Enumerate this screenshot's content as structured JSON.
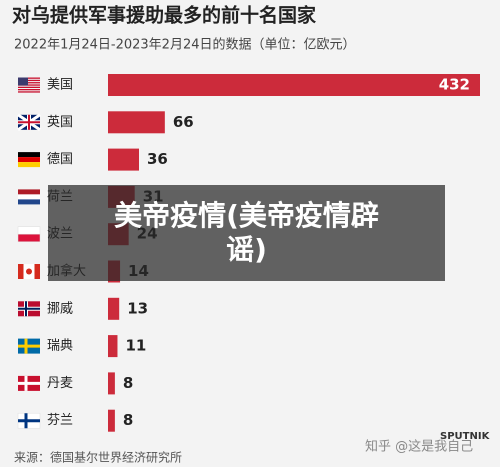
{
  "chart_data": {
    "type": "bar",
    "orientation": "horizontal",
    "title": "对乌提供军事援助最多的前十名国家",
    "subtitle": "2022年1月24日-2023年2月24日的数据（单位：亿欧元）",
    "categories": [
      "美国",
      "英国",
      "德国",
      "荷兰",
      "波兰",
      "加拿大",
      "挪威",
      "瑞典",
      "丹麦",
      "芬兰"
    ],
    "values": [
      432,
      66,
      36,
      31,
      24,
      14,
      13,
      11,
      8,
      8
    ],
    "color": "#cc2b3b",
    "source": "来源：德国基尔世界经济研究所"
  },
  "overlay": {
    "text": "美帝疫情(美帝疫情辟谣)"
  },
  "watermark": {
    "text": "知乎 @这是我自己",
    "logo": "SPUTNIK"
  }
}
